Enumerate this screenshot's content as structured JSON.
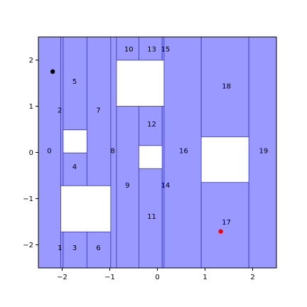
{
  "chart_data": {
    "type": "cell_decomposition",
    "xlim": [
      -2.5,
      2.5
    ],
    "ylim": [
      -2.5,
      2.5
    ],
    "xticks": [
      -2,
      -1,
      0,
      1,
      2
    ],
    "yticks": [
      -2,
      -1,
      0,
      1,
      2
    ],
    "xtick_labels": [
      "−2",
      "−1",
      "0",
      "1",
      "2"
    ],
    "ytick_labels": [
      "−2",
      "−1",
      "0",
      "1",
      "2"
    ],
    "grid": false,
    "colors": {
      "cell_fill": "#9999ff",
      "cell_edge": "#3333cc",
      "start_point": "#000000",
      "goal_point": "#ff0000"
    },
    "cells": [
      {
        "id": "0",
        "x": [
          -2.5,
          -2.03
        ],
        "y": [
          -2.5,
          2.5
        ]
      },
      {
        "id": "1",
        "x": [
          -2.03,
          -1.98
        ],
        "y": [
          -2.5,
          -1.72
        ]
      },
      {
        "id": "2",
        "x": [
          -2.03,
          -1.98
        ],
        "y": [
          -0.72,
          2.5
        ]
      },
      {
        "id": "3",
        "x": [
          -1.98,
          -1.48
        ],
        "y": [
          -2.5,
          -1.72
        ]
      },
      {
        "id": "4",
        "x": [
          -1.98,
          -1.48
        ],
        "y": [
          -0.72,
          -0.01
        ]
      },
      {
        "id": "5",
        "x": [
          -1.98,
          -1.48
        ],
        "y": [
          0.49,
          2.5
        ]
      },
      {
        "id": "6",
        "x": [
          -1.48,
          -0.98
        ],
        "y": [
          -2.5,
          -1.72
        ]
      },
      {
        "id": "7",
        "x": [
          -1.48,
          -0.98
        ],
        "y": [
          -0.72,
          2.5
        ]
      },
      {
        "id": "8",
        "x": [
          -0.98,
          -0.86
        ],
        "y": [
          -2.5,
          2.5
        ]
      },
      {
        "id": "9",
        "x": [
          -0.86,
          -0.39
        ],
        "y": [
          -2.5,
          1.0
        ]
      },
      {
        "id": "10",
        "x": [
          -0.86,
          -0.39
        ],
        "y": [
          2.0,
          2.5
        ]
      },
      {
        "id": "11",
        "x": [
          -0.39,
          0.1
        ],
        "y": [
          -2.5,
          -0.35
        ]
      },
      {
        "id": "12",
        "x": [
          -0.39,
          0.1
        ],
        "y": [
          0.15,
          1.0
        ]
      },
      {
        "id": "13",
        "x": [
          -0.39,
          0.1
        ],
        "y": [
          2.0,
          2.5
        ]
      },
      {
        "id": "14",
        "x": [
          0.1,
          0.14
        ],
        "y": [
          -2.5,
          1.0
        ]
      },
      {
        "id": "15",
        "x": [
          0.1,
          0.14
        ],
        "y": [
          2.0,
          2.5
        ]
      },
      {
        "id": "16",
        "x": [
          0.14,
          0.92
        ],
        "y": [
          -2.5,
          2.5
        ]
      },
      {
        "id": "17",
        "x": [
          0.92,
          1.92
        ],
        "y": [
          -2.5,
          -0.65
        ]
      },
      {
        "id": "18",
        "x": [
          0.92,
          1.92
        ],
        "y": [
          0.34,
          2.5
        ]
      },
      {
        "id": "19",
        "x": [
          1.92,
          2.5
        ],
        "y": [
          -2.5,
          2.5
        ]
      }
    ],
    "cell_labels": [
      {
        "text": "0",
        "x": -2.27,
        "y": 0.05
      },
      {
        "text": "1",
        "x": -2.05,
        "y": -2.05
      },
      {
        "text": "2",
        "x": -2.05,
        "y": 0.92
      },
      {
        "text": "3",
        "x": -1.74,
        "y": -2.05
      },
      {
        "text": "4",
        "x": -1.74,
        "y": -0.3
      },
      {
        "text": "5",
        "x": -1.74,
        "y": 1.55
      },
      {
        "text": "6",
        "x": -1.24,
        "y": -2.05
      },
      {
        "text": "7",
        "x": -1.24,
        "y": 0.92
      },
      {
        "text": "8",
        "x": -0.94,
        "y": 0.05
      },
      {
        "text": "9",
        "x": -0.63,
        "y": -0.7
      },
      {
        "text": "10",
        "x": -0.6,
        "y": 2.25
      },
      {
        "text": "11",
        "x": -0.12,
        "y": -1.38
      },
      {
        "text": "12",
        "x": -0.12,
        "y": 0.62
      },
      {
        "text": "13",
        "x": -0.12,
        "y": 2.25
      },
      {
        "text": "14",
        "x": 0.17,
        "y": -0.7
      },
      {
        "text": "15",
        "x": 0.17,
        "y": 2.25
      },
      {
        "text": "16",
        "x": 0.55,
        "y": 0.05
      },
      {
        "text": "17",
        "x": 1.45,
        "y": -1.5
      },
      {
        "text": "18",
        "x": 1.45,
        "y": 1.45
      },
      {
        "text": "19",
        "x": 2.23,
        "y": 0.05
      }
    ],
    "points": [
      {
        "role": "start",
        "x": -2.2,
        "y": 1.75
      },
      {
        "role": "goal",
        "x": 1.33,
        "y": -1.71
      }
    ]
  }
}
